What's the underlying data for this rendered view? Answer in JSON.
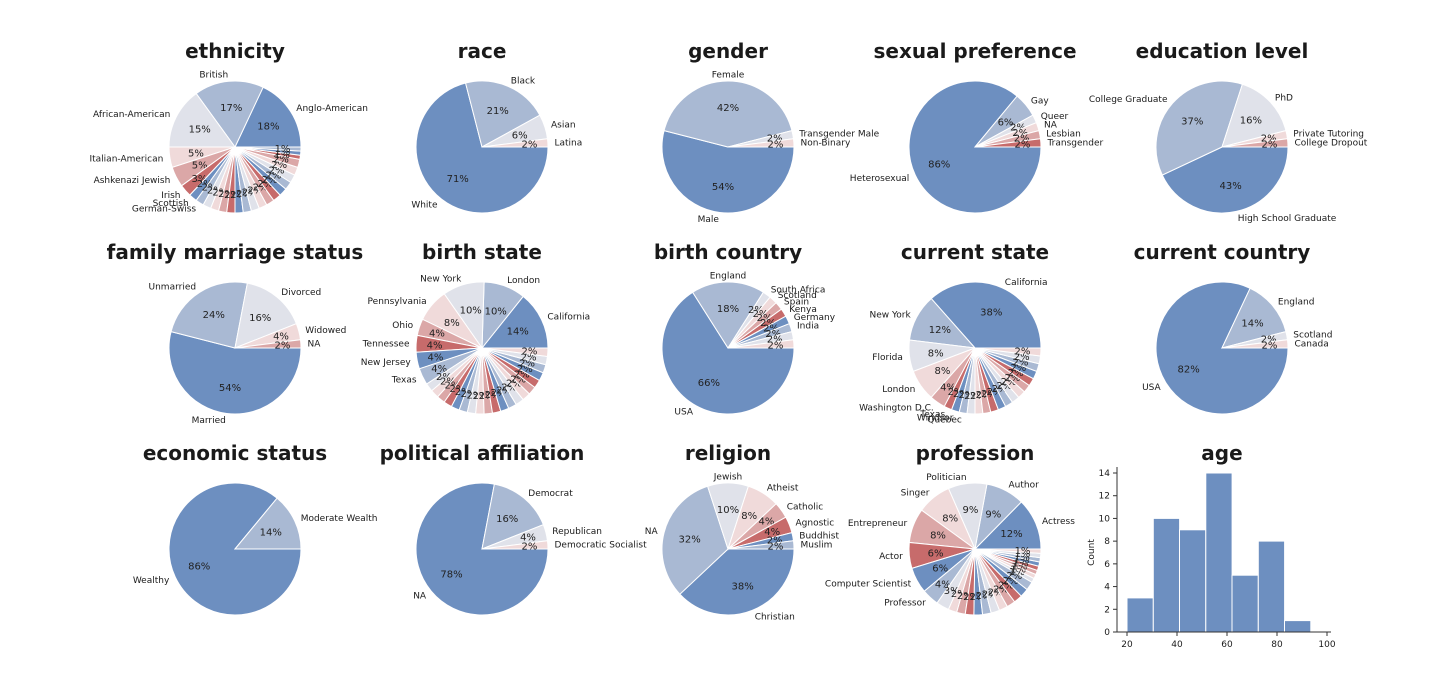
{
  "colors": {
    "palette": [
      "#6d8fc0",
      "#a9b9d3",
      "#e0e2ea",
      "#f0dada",
      "#dba7a7",
      "#c76b6b"
    ],
    "text": "#1a1a1a",
    "axis": "#333333"
  },
  "chart_data": [
    {
      "type": "pie",
      "title": "ethnicity",
      "slices": [
        {
          "label": "Anglo-American",
          "value": 18,
          "pct_label": "18%"
        },
        {
          "label": "British",
          "value": 17,
          "pct_label": "17%"
        },
        {
          "label": "African-American",
          "value": 15,
          "pct_label": "15%"
        },
        {
          "label": "Italian-American",
          "value": 5,
          "pct_label": "5%"
        },
        {
          "label": "Ashkenazi Jewish",
          "value": 5,
          "pct_label": "5%"
        },
        {
          "label": "Irish",
          "value": 3,
          "pct_label": "3%"
        },
        {
          "label": "Scottish",
          "value": 2,
          "pct_label": "2%"
        },
        {
          "label": "German-Swiss",
          "value": 2,
          "pct_label": "2%"
        },
        {
          "label": "",
          "value": 2,
          "pct_label": "2%"
        },
        {
          "label": "",
          "value": 2,
          "pct_label": "2%"
        },
        {
          "label": "",
          "value": 2,
          "pct_label": "2%"
        },
        {
          "label": "",
          "value": 2,
          "pct_label": "2%"
        },
        {
          "label": "",
          "value": 2,
          "pct_label": "2%"
        },
        {
          "label": "",
          "value": 2,
          "pct_label": "2%"
        },
        {
          "label": "",
          "value": 2,
          "pct_label": "2%"
        },
        {
          "label": "",
          "value": 2,
          "pct_label": "2%"
        },
        {
          "label": "",
          "value": 2,
          "pct_label": "2%"
        },
        {
          "label": "",
          "value": 2,
          "pct_label": "2%"
        },
        {
          "label": "",
          "value": 2,
          "pct_label": "2%"
        },
        {
          "label": "",
          "value": 2,
          "pct_label": "2%"
        },
        {
          "label": "",
          "value": 2,
          "pct_label": "2%"
        },
        {
          "label": "",
          "value": 2,
          "pct_label": "2%"
        },
        {
          "label": "",
          "value": 2,
          "pct_label": "2%"
        },
        {
          "label": "",
          "value": 1,
          "pct_label": "1%"
        },
        {
          "label": "",
          "value": 1,
          "pct_label": "1%"
        },
        {
          "label": "",
          "value": 1,
          "pct_label": "1%"
        }
      ]
    },
    {
      "type": "pie",
      "title": "race",
      "slices": [
        {
          "label": "White",
          "value": 71,
          "pct_label": "71%"
        },
        {
          "label": "Black",
          "value": 21,
          "pct_label": "21%"
        },
        {
          "label": "Asian",
          "value": 6,
          "pct_label": "6%"
        },
        {
          "label": "Latina",
          "value": 2,
          "pct_label": "2%"
        }
      ],
      "order": "cw"
    },
    {
      "type": "pie",
      "title": "gender",
      "slices": [
        {
          "label": "Male",
          "value": 54,
          "pct_label": "54%"
        },
        {
          "label": "Female",
          "value": 42,
          "pct_label": "42%"
        },
        {
          "label": "Transgender Male",
          "value": 2,
          "pct_label": "2%"
        },
        {
          "label": "Non-Binary",
          "value": 2,
          "pct_label": "2%"
        }
      ],
      "order": "cw"
    },
    {
      "type": "pie",
      "title": "sexual preference",
      "slices": [
        {
          "label": "Heterosexual",
          "value": 86,
          "pct_label": "86%"
        },
        {
          "label": "Gay",
          "value": 6,
          "pct_label": "6%"
        },
        {
          "label": "Queer",
          "value": 2,
          "pct_label": "2%"
        },
        {
          "label": "NA",
          "value": 2,
          "pct_label": "2%"
        },
        {
          "label": "Lesbian",
          "value": 2,
          "pct_label": "2%"
        },
        {
          "label": "Transgender",
          "value": 2,
          "pct_label": "2%"
        }
      ],
      "order": "cw"
    },
    {
      "type": "pie",
      "title": "education level",
      "slices": [
        {
          "label": "High School Graduate",
          "value": 43,
          "pct_label": "43%"
        },
        {
          "label": "College Graduate",
          "value": 37,
          "pct_label": "37%"
        },
        {
          "label": "PhD",
          "value": 16,
          "pct_label": "16%"
        },
        {
          "label": "Private Tutoring",
          "value": 2,
          "pct_label": "2%"
        },
        {
          "label": "College Dropout",
          "value": 2,
          "pct_label": "2%"
        }
      ],
      "order": "cw"
    },
    {
      "type": "pie",
      "title": "family marriage status",
      "slices": [
        {
          "label": "Married",
          "value": 54,
          "pct_label": "54%"
        },
        {
          "label": "Unmarried",
          "value": 24,
          "pct_label": "24%"
        },
        {
          "label": "Divorced",
          "value": 16,
          "pct_label": "16%"
        },
        {
          "label": "Widowed",
          "value": 4,
          "pct_label": "4%"
        },
        {
          "label": "NA",
          "value": 2,
          "pct_label": "2%"
        }
      ],
      "order": "cw"
    },
    {
      "type": "pie",
      "title": "birth state",
      "slices": [
        {
          "label": "California",
          "value": 14,
          "pct_label": "14%"
        },
        {
          "label": "London",
          "value": 10,
          "pct_label": "10%"
        },
        {
          "label": "New York",
          "value": 10,
          "pct_label": "10%"
        },
        {
          "label": "Pennsylvania",
          "value": 8,
          "pct_label": "8%"
        },
        {
          "label": "Ohio",
          "value": 4,
          "pct_label": "4%"
        },
        {
          "label": "Tennessee",
          "value": 4,
          "pct_label": "4%"
        },
        {
          "label": "New Jersey",
          "value": 4,
          "pct_label": "4%"
        },
        {
          "label": "Texas",
          "value": 4,
          "pct_label": "4%"
        },
        {
          "label": "",
          "value": 2,
          "pct_label": "2%"
        },
        {
          "label": "",
          "value": 2,
          "pct_label": "2%"
        },
        {
          "label": "",
          "value": 2,
          "pct_label": "2%"
        },
        {
          "label": "",
          "value": 2,
          "pct_label": "2%"
        },
        {
          "label": "",
          "value": 2,
          "pct_label": "2%"
        },
        {
          "label": "",
          "value": 2,
          "pct_label": "2%"
        },
        {
          "label": "",
          "value": 2,
          "pct_label": "2%"
        },
        {
          "label": "",
          "value": 2,
          "pct_label": "2%"
        },
        {
          "label": "",
          "value": 2,
          "pct_label": "2%"
        },
        {
          "label": "",
          "value": 2,
          "pct_label": "2%"
        },
        {
          "label": "",
          "value": 2,
          "pct_label": "2%"
        },
        {
          "label": "",
          "value": 2,
          "pct_label": "2%"
        },
        {
          "label": "",
          "value": 2,
          "pct_label": "2%"
        },
        {
          "label": "",
          "value": 2,
          "pct_label": "2%"
        },
        {
          "label": "",
          "value": 2,
          "pct_label": "2%"
        },
        {
          "label": "",
          "value": 2,
          "pct_label": "2%"
        },
        {
          "label": "",
          "value": 2,
          "pct_label": "2%"
        },
        {
          "label": "",
          "value": 2,
          "pct_label": "2%"
        },
        {
          "label": "",
          "value": 2,
          "pct_label": "2%"
        },
        {
          "label": "",
          "value": 2,
          "pct_label": "2%"
        }
      ]
    },
    {
      "type": "pie",
      "title": "birth country",
      "slices": [
        {
          "label": "USA",
          "value": 66,
          "pct_label": "66%"
        },
        {
          "label": "England",
          "value": 18,
          "pct_label": "18%"
        },
        {
          "label": "South Africa",
          "value": 2,
          "pct_label": "2%"
        },
        {
          "label": "Scotland",
          "value": 2,
          "pct_label": "2%"
        },
        {
          "label": "Spain",
          "value": 2,
          "pct_label": "2%"
        },
        {
          "label": "Kenya",
          "value": 2,
          "pct_label": "2%"
        },
        {
          "label": "Germany",
          "value": 2,
          "pct_label": "2%"
        },
        {
          "label": "India",
          "value": 2,
          "pct_label": "2%"
        },
        {
          "label": "",
          "value": 2,
          "pct_label": "2%"
        },
        {
          "label": "",
          "value": 2,
          "pct_label": "2%"
        }
      ],
      "order": "cw"
    },
    {
      "type": "pie",
      "title": "current state",
      "slices": [
        {
          "label": "California",
          "value": 38,
          "pct_label": "38%"
        },
        {
          "label": "New York",
          "value": 12,
          "pct_label": "12%"
        },
        {
          "label": "Florida",
          "value": 8,
          "pct_label": "8%"
        },
        {
          "label": "London",
          "value": 8,
          "pct_label": "8%"
        },
        {
          "label": "Washington D.C.",
          "value": 4,
          "pct_label": "4%"
        },
        {
          "label": "Texas",
          "value": 2,
          "pct_label": "2%"
        },
        {
          "label": "Windsor",
          "value": 2,
          "pct_label": "2%"
        },
        {
          "label": "Quebec",
          "value": 2,
          "pct_label": "2%"
        },
        {
          "label": "",
          "value": 2,
          "pct_label": "2%"
        },
        {
          "label": "",
          "value": 2,
          "pct_label": "2%"
        },
        {
          "label": "",
          "value": 2,
          "pct_label": "2%"
        },
        {
          "label": "",
          "value": 2,
          "pct_label": "2%"
        },
        {
          "label": "",
          "value": 2,
          "pct_label": "2%"
        },
        {
          "label": "",
          "value": 2,
          "pct_label": "2%"
        },
        {
          "label": "",
          "value": 2,
          "pct_label": "2%"
        },
        {
          "label": "",
          "value": 2,
          "pct_label": "2%"
        },
        {
          "label": "",
          "value": 2,
          "pct_label": "2%"
        },
        {
          "label": "",
          "value": 2,
          "pct_label": "2%"
        },
        {
          "label": "",
          "value": 2,
          "pct_label": "2%"
        },
        {
          "label": "",
          "value": 2,
          "pct_label": "2%"
        },
        {
          "label": "",
          "value": 2,
          "pct_label": "2%"
        },
        {
          "label": "",
          "value": 2,
          "pct_label": "2%"
        }
      ]
    },
    {
      "type": "pie",
      "title": "current country",
      "slices": [
        {
          "label": "USA",
          "value": 82,
          "pct_label": "82%"
        },
        {
          "label": "England",
          "value": 14,
          "pct_label": "14%"
        },
        {
          "label": "Scotland",
          "value": 2,
          "pct_label": "2%"
        },
        {
          "label": "Canada",
          "value": 2,
          "pct_label": "2%"
        }
      ],
      "order": "cw"
    },
    {
      "type": "pie",
      "title": "economic status",
      "slices": [
        {
          "label": "Wealthy",
          "value": 86,
          "pct_label": "86%"
        },
        {
          "label": "Moderate Wealth",
          "value": 14,
          "pct_label": "14%"
        }
      ],
      "order": "cw"
    },
    {
      "type": "pie",
      "title": "political affiliation",
      "slices": [
        {
          "label": "NA",
          "value": 78,
          "pct_label": "78%"
        },
        {
          "label": "Democrat",
          "value": 16,
          "pct_label": "16%"
        },
        {
          "label": "Republican",
          "value": 4,
          "pct_label": "4%"
        },
        {
          "label": "Democratic Socialist",
          "value": 2,
          "pct_label": "2%"
        }
      ],
      "order": "cw"
    },
    {
      "type": "pie",
      "title": "religion",
      "slices": [
        {
          "label": "Christian",
          "value": 38,
          "pct_label": "38%"
        },
        {
          "label": "NA",
          "value": 32,
          "pct_label": "32%"
        },
        {
          "label": "Jewish",
          "value": 10,
          "pct_label": "10%"
        },
        {
          "label": "Atheist",
          "value": 8,
          "pct_label": "8%"
        },
        {
          "label": "Catholic",
          "value": 4,
          "pct_label": "4%"
        },
        {
          "label": "Agnostic",
          "value": 4,
          "pct_label": "4%"
        },
        {
          "label": "Buddhist",
          "value": 2,
          "pct_label": "2%"
        },
        {
          "label": "Muslim",
          "value": 2,
          "pct_label": "2%"
        }
      ],
      "order": "cw"
    },
    {
      "type": "pie",
      "title": "profession",
      "slices": [
        {
          "label": "Actress",
          "value": 12,
          "pct_label": "12%"
        },
        {
          "label": "Author",
          "value": 9,
          "pct_label": "9%"
        },
        {
          "label": "Politician",
          "value": 9,
          "pct_label": "9%"
        },
        {
          "label": "Singer",
          "value": 8,
          "pct_label": "8%"
        },
        {
          "label": "Entrepreneur",
          "value": 8,
          "pct_label": "8%"
        },
        {
          "label": "Actor",
          "value": 6,
          "pct_label": "6%"
        },
        {
          "label": "Computer Scientist",
          "value": 6,
          "pct_label": "6%"
        },
        {
          "label": "Professor",
          "value": 4,
          "pct_label": "4%"
        },
        {
          "label": "",
          "value": 3,
          "pct_label": "3%"
        },
        {
          "label": "",
          "value": 2,
          "pct_label": "2%"
        },
        {
          "label": "",
          "value": 2,
          "pct_label": "2%"
        },
        {
          "label": "",
          "value": 2,
          "pct_label": "2%"
        },
        {
          "label": "",
          "value": 2,
          "pct_label": "2%"
        },
        {
          "label": "",
          "value": 2,
          "pct_label": "2%"
        },
        {
          "label": "",
          "value": 2,
          "pct_label": "2%"
        },
        {
          "label": "",
          "value": 2,
          "pct_label": "2%"
        },
        {
          "label": "",
          "value": 2,
          "pct_label": "2%"
        },
        {
          "label": "",
          "value": 2,
          "pct_label": "2%"
        },
        {
          "label": "",
          "value": 2,
          "pct_label": "2%"
        },
        {
          "label": "",
          "value": 2,
          "pct_label": "2%"
        },
        {
          "label": "",
          "value": 1,
          "pct_label": "1%"
        },
        {
          "label": "",
          "value": 1,
          "pct_label": "1%"
        },
        {
          "label": "",
          "value": 1,
          "pct_label": "1%"
        },
        {
          "label": "",
          "value": 1,
          "pct_label": "1%"
        },
        {
          "label": "",
          "value": 1,
          "pct_label": "1%"
        },
        {
          "label": "",
          "value": 1,
          "pct_label": "1%"
        },
        {
          "label": "",
          "value": 1,
          "pct_label": "1%"
        },
        {
          "label": "",
          "value": 1,
          "pct_label": "1%"
        }
      ]
    },
    {
      "type": "histogram",
      "title": "age",
      "xlabel": "",
      "ylabel": "Count",
      "bins": [
        [
          20,
          30,
          3
        ],
        [
          30,
          40,
          10
        ],
        [
          40,
          50,
          9
        ],
        [
          50,
          60,
          14
        ],
        [
          60,
          70,
          5
        ],
        [
          70,
          80,
          8
        ],
        [
          80,
          90,
          1
        ]
      ],
      "xlim": [
        20,
        100
      ],
      "ylim": [
        0,
        14
      ],
      "xticks": [
        20,
        40,
        60,
        80,
        100
      ],
      "yticks": [
        0,
        2,
        4,
        6,
        8,
        10,
        12,
        14
      ]
    }
  ]
}
